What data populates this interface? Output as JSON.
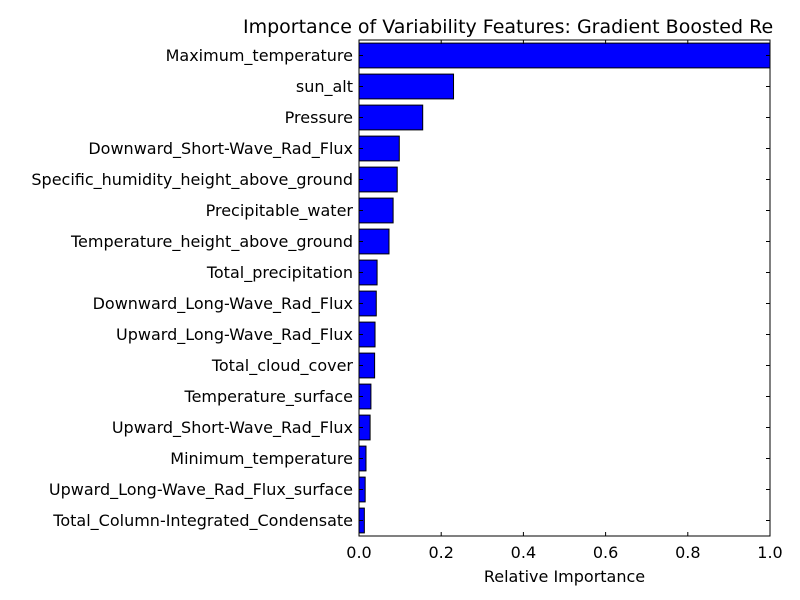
{
  "chart_data": {
    "type": "bar",
    "orientation": "horizontal",
    "title": "Importance of Variability Features: Gradient Boosted Re",
    "xlabel": "Relative Importance",
    "ylabel": "",
    "xlim": [
      0.0,
      1.0
    ],
    "xticks": [
      "0.0",
      "0.2",
      "0.4",
      "0.6",
      "0.8",
      "1.0"
    ],
    "bar_color": "#0000ff",
    "grid": false,
    "categories": [
      "Maximum_temperature",
      "sun_alt",
      "Pressure",
      "Downward_Short-Wave_Rad_Flux",
      "Specific_humidity_height_above_ground",
      "Precipitable_water",
      "Temperature_height_above_ground",
      "Total_precipitation",
      "Downward_Long-Wave_Rad_Flux",
      "Upward_Long-Wave_Rad_Flux",
      "Total_cloud_cover",
      "Temperature_surface",
      "Upward_Short-Wave_Rad_Flux",
      "Minimum_temperature",
      "Upward_Long-Wave_Rad_Flux_surface",
      "Total_Column-Integrated_Condensate"
    ],
    "values": [
      1.0,
      0.23,
      0.155,
      0.098,
      0.093,
      0.083,
      0.073,
      0.044,
      0.042,
      0.039,
      0.038,
      0.029,
      0.027,
      0.017,
      0.015,
      0.013
    ]
  }
}
